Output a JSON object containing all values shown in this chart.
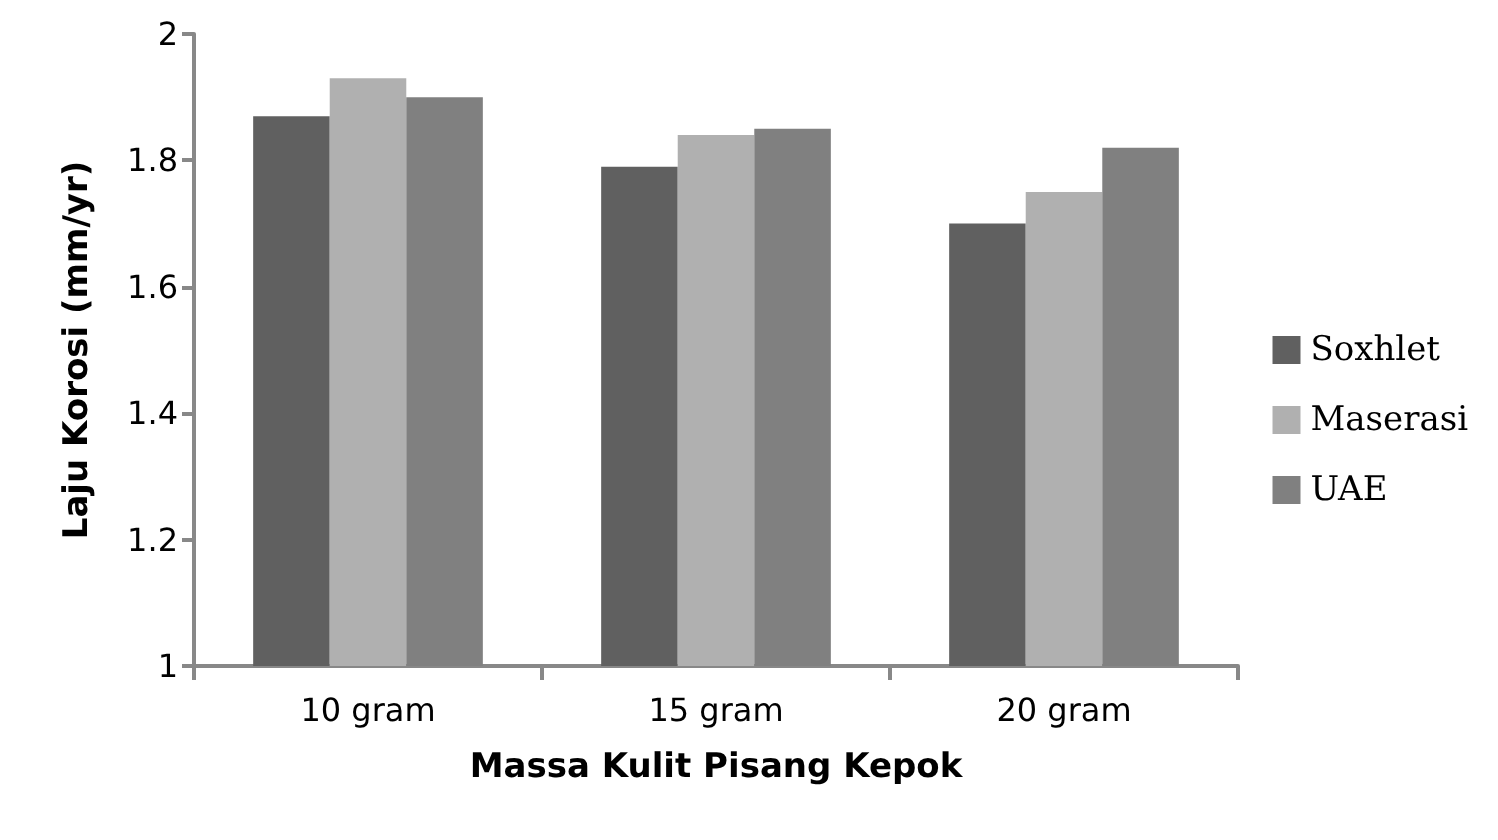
{
  "chart_data": {
    "type": "bar",
    "xlabel": "Massa Kulit Pisang Kepok",
    "ylabel": "Laju Korosi (mm/yr)",
    "categories": [
      "10 gram",
      "15 gram",
      "20 gram"
    ],
    "series": [
      {
        "name": "Soxhlet",
        "color": "#606060",
        "values": [
          1.87,
          1.79,
          1.7
        ]
      },
      {
        "name": "Maserasi",
        "color": "#b0b0b0",
        "values": [
          1.93,
          1.84,
          1.75
        ]
      },
      {
        "name": "UAE",
        "color": "#808080",
        "values": [
          1.9,
          1.85,
          1.82
        ]
      }
    ],
    "ylim": [
      1,
      2
    ],
    "yticks": [
      1,
      1.2,
      1.4,
      1.6,
      1.8,
      2
    ],
    "legend": "right"
  }
}
